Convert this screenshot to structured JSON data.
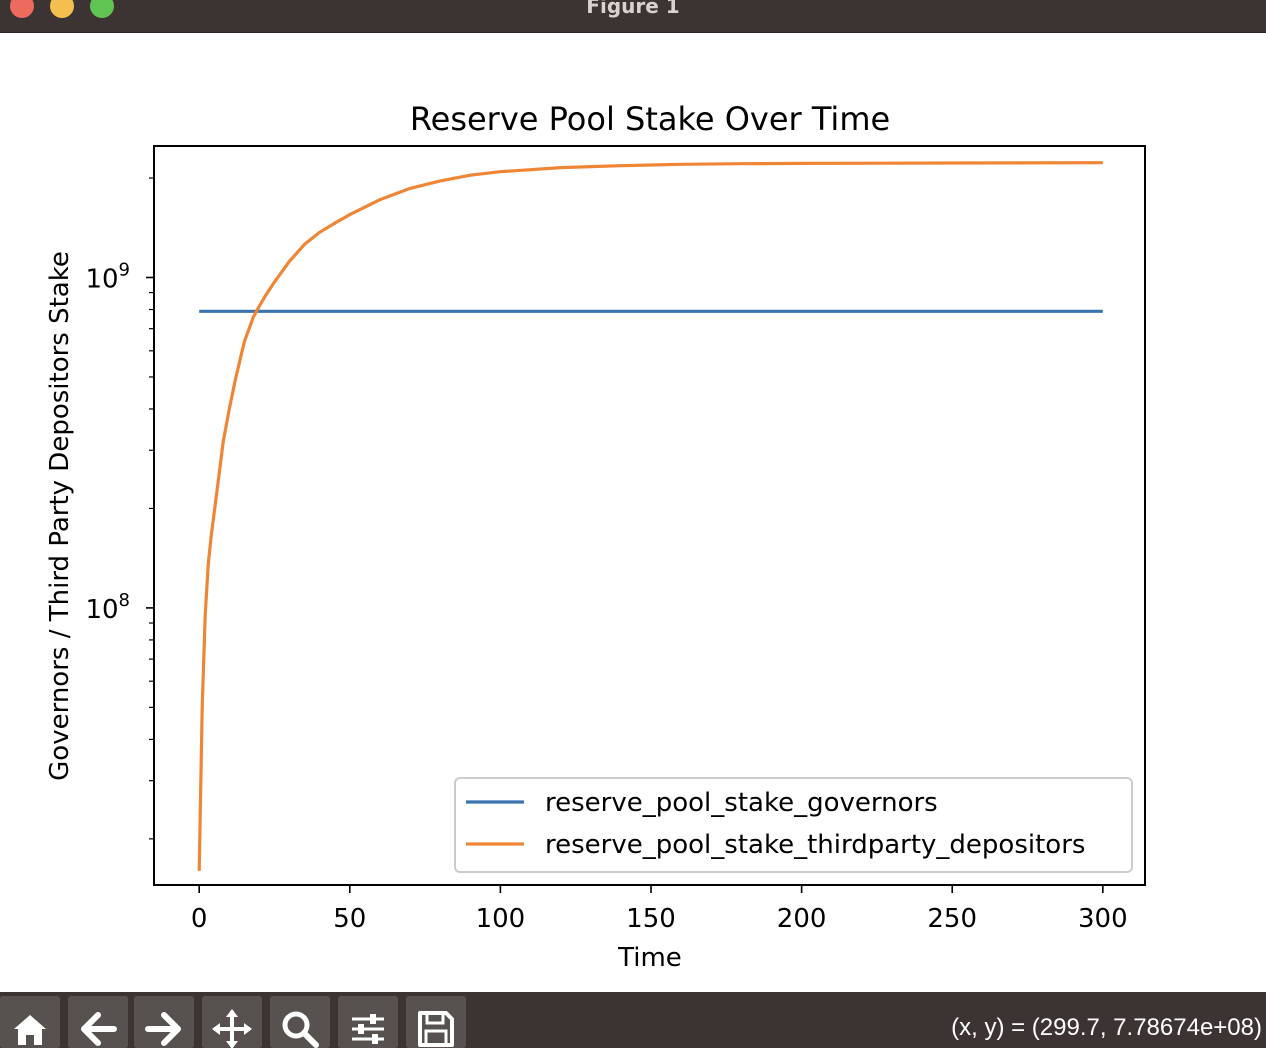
{
  "window": {
    "title": "Figure 1"
  },
  "toolbar": {
    "buttons": [
      {
        "name": "home-button",
        "icon": "home-icon"
      },
      {
        "name": "back-button",
        "icon": "back-arrow-icon"
      },
      {
        "name": "forward-button",
        "icon": "forward-arrow-icon"
      },
      {
        "name": "pan-button",
        "icon": "move-icon"
      },
      {
        "name": "zoom-button",
        "icon": "magnifier-icon"
      },
      {
        "name": "configure-subplots-button",
        "icon": "sliders-icon"
      },
      {
        "name": "save-button",
        "icon": "floppy-disk-icon"
      }
    ],
    "coords": "(x, y) = (299.7, 7.78674e+08)"
  },
  "chart_data": {
    "type": "line",
    "title": "Reserve Pool Stake Over Time",
    "xlabel": "Time",
    "ylabel": "Governors / Third Party Depositors Stake",
    "yscale": "log",
    "xlim": [
      -15,
      314
    ],
    "ylim": [
      14500000,
      2500000000
    ],
    "xticks": [
      0,
      50,
      100,
      150,
      200,
      250,
      300
    ],
    "yticks_major": [
      100000000,
      1000000000
    ],
    "ytick_labels": [
      "10",
      "10"
    ],
    "ytick_exponents": [
      "8",
      "9"
    ],
    "grid": false,
    "legend_position": "lower right",
    "series": [
      {
        "name": "reserve_pool_stake_governors",
        "color": "#3b75af",
        "x": [
          0,
          300
        ],
        "y": [
          790000000,
          790000000
        ]
      },
      {
        "name": "reserve_pool_stake_thirdparty_depositors",
        "color": "#ef8636",
        "x": [
          0,
          1,
          2,
          3,
          4,
          6,
          8,
          10,
          12,
          15,
          18,
          20,
          22,
          25,
          30,
          35,
          40,
          45,
          50,
          60,
          70,
          80,
          90,
          100,
          110,
          120,
          140,
          160,
          180,
          200,
          250,
          300
        ],
        "y": [
          16000000,
          50000000,
          95000000,
          135000000,
          165000000,
          230000000,
          320000000,
          400000000,
          490000000,
          640000000,
          760000000,
          820000000,
          880000000,
          970000000,
          1120000000,
          1260000000,
          1370000000,
          1460000000,
          1550000000,
          1720000000,
          1860000000,
          1960000000,
          2040000000,
          2090000000,
          2120000000,
          2150000000,
          2180000000,
          2200000000,
          2210000000,
          2215000000,
          2220000000,
          2225000000
        ]
      }
    ]
  }
}
